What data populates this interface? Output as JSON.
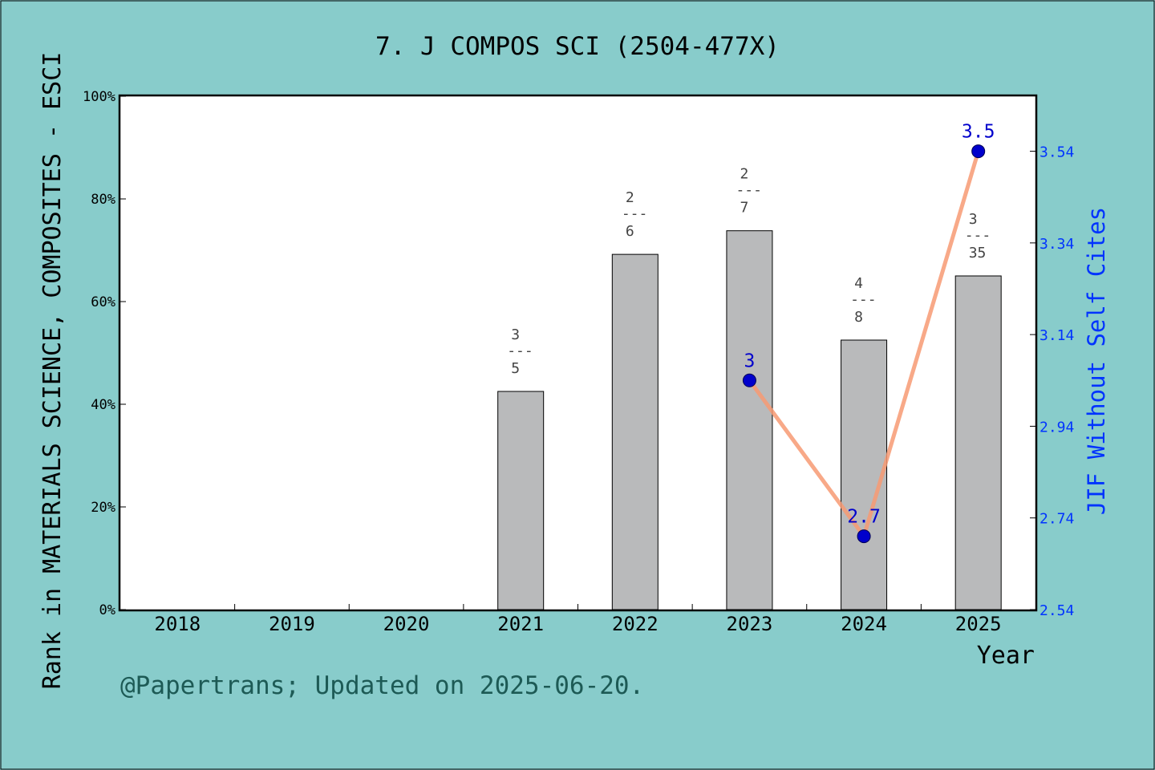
{
  "chart_data": {
    "type": "bar",
    "title": "7. J COMPOS SCI (2504-477X)",
    "xlabel": "Year",
    "ylabel": "Rank in MATERIALS SCIENCE, COMPOSITES - ESCI",
    "y2label": "JIF Without Self Cites",
    "footer": "@Papertrans; Updated on 2025-06-20.",
    "categories": [
      "2018",
      "2019",
      "2020",
      "2021",
      "2022",
      "2023",
      "2024",
      "2025"
    ],
    "ylim": [
      0,
      100
    ],
    "yticks": [
      "0%",
      "20%",
      "40%",
      "60%",
      "80%",
      "100%"
    ],
    "y2lim": [
      2.54,
      3.66
    ],
    "y2ticks": [
      "2.54",
      "2.74",
      "2.94",
      "3.14",
      "3.34",
      "3.54"
    ],
    "bars": [
      {
        "category": "2021",
        "value": 42.5,
        "rank": "3",
        "total": "5"
      },
      {
        "category": "2022",
        "value": 69.2,
        "rank": "2",
        "total": "6"
      },
      {
        "category": "2023",
        "value": 73.8,
        "rank": "2",
        "total": "7"
      },
      {
        "category": "2024",
        "value": 52.5,
        "rank": "4",
        "total": "8"
      },
      {
        "category": "2025",
        "value": 65.0,
        "rank": "3",
        "total": "35"
      }
    ],
    "line": {
      "points": [
        {
          "category": "2023",
          "value": 3.04,
          "label": "3"
        },
        {
          "category": "2024",
          "value": 2.7,
          "label": "2.7"
        },
        {
          "category": "2025",
          "value": 3.54,
          "label": "3.5"
        }
      ]
    },
    "fraction_bar": "---",
    "colors": {
      "background": "#88cccb",
      "plot": "#ffffff",
      "bar": "#b9babb",
      "line": "#f79a73",
      "marker": "#0000cc",
      "right_axis": "#0033ff"
    },
    "grid": false
  }
}
